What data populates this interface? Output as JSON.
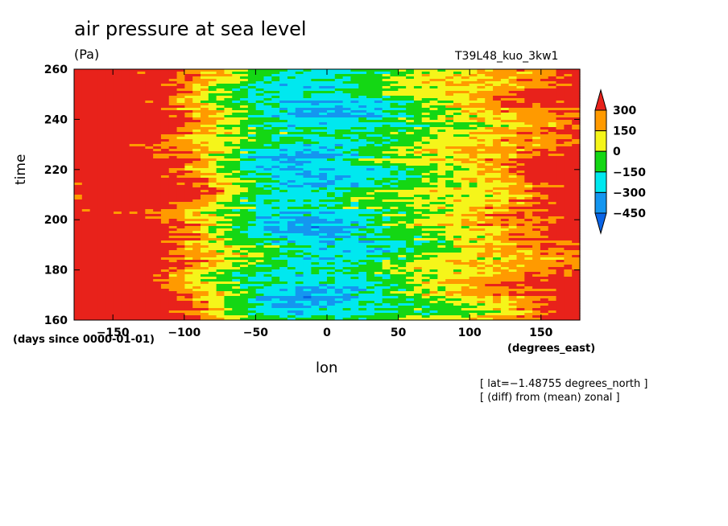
{
  "chart_data": {
    "type": "heatmap",
    "title": "air pressure at sea level",
    "units": "(Pa)",
    "run_label": "T39L48_kuo_3kw1",
    "xlabel": "lon",
    "ylabel": "time",
    "x_units": "(degrees_east)",
    "y_units": "(days since 0000-01-01)",
    "xlim": [
      -177.2,
      177.2
    ],
    "ylim": [
      160,
      260
    ],
    "x_ticks": [
      -150,
      -100,
      -50,
      0,
      50,
      100,
      150
    ],
    "y_ticks": [
      160,
      180,
      200,
      220,
      240,
      260
    ],
    "colorbar": {
      "levels": [
        "300",
        "150",
        "0",
        "−150",
        "−300",
        "−450"
      ],
      "colors": [
        "#e8221b",
        "#ff9a00",
        "#f5f51a",
        "#14d714",
        "#00e8ef",
        "#1496f0",
        "#0a64e6"
      ]
    },
    "notes": [
      "[ lat=−1.48755 degrees_north ]",
      "[ (diff) from (mean) zonal ]"
    ],
    "grid": false
  }
}
